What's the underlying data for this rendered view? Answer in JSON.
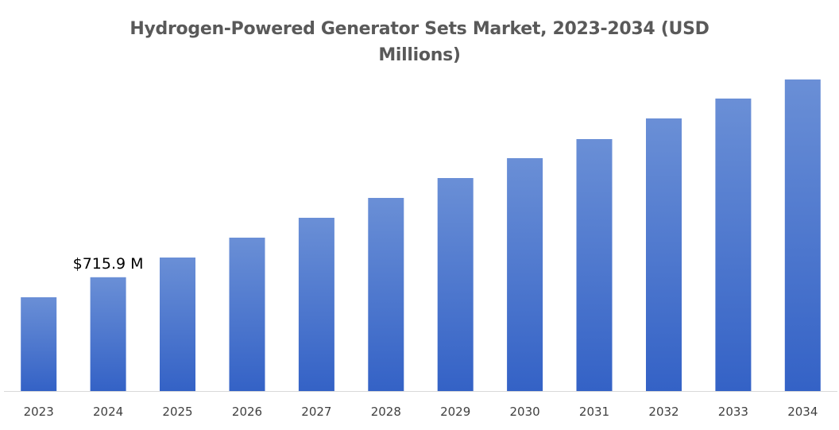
{
  "chart_data": {
    "type": "bar",
    "title_line1": "Hydrogen-Powered Generator Sets Market,  2023-2034 (USD",
    "title_line2": "Millions)",
    "xlabel": "",
    "ylabel": "",
    "categories": [
      "2023",
      "2024",
      "2025",
      "2026",
      "2027",
      "2028",
      "2029",
      "2030",
      "2031",
      "2032",
      "2033",
      "2034"
    ],
    "values": [
      590,
      715.9,
      840,
      965,
      1090,
      1215,
      1340,
      1465,
      1585,
      1715,
      1840,
      1960
    ],
    "ylim": [
      0,
      2100
    ],
    "data_labels": [
      {
        "category": "2024",
        "text": "$715.9 M"
      }
    ],
    "grid": false,
    "legend": "none",
    "bar_color_top": "#6a8fd6",
    "bar_color_bottom": "#3462c6",
    "axis_color": "#d9d9d9"
  }
}
